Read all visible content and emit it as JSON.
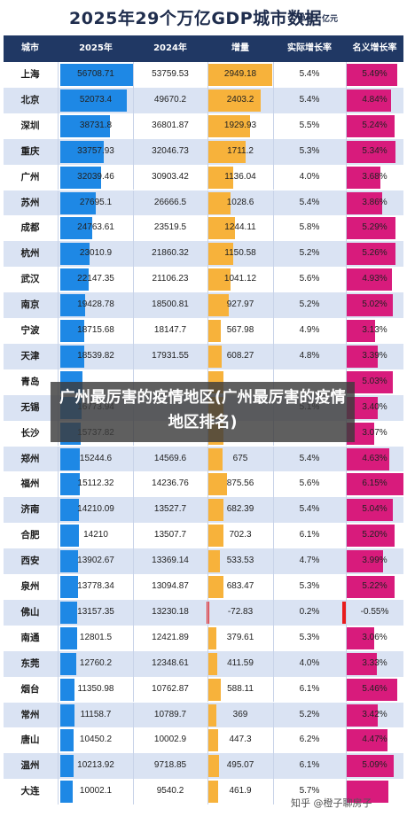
{
  "title": "2025年29个万亿GDP城市数据",
  "unit": "单位：亿元",
  "headers": [
    "城市",
    "2025年",
    "2024年",
    "增量",
    "实际增长率",
    "名义增长率"
  ],
  "chart_data": {
    "type": "table",
    "title": "2025年29个万亿GDP城市数据",
    "columns": [
      "城市",
      "2025年",
      "2024年",
      "增量",
      "实际增长率",
      "名义增长率"
    ],
    "rows": [
      {
        "city": "上海",
        "y2025": "56708.71",
        "y2024": "53759.53",
        "inc": "2949.18",
        "real": "5.4%",
        "nominal": "5.49%"
      },
      {
        "city": "北京",
        "y2025": "52073.4",
        "y2024": "49670.2",
        "inc": "2403.2",
        "real": "5.4%",
        "nominal": "4.84%"
      },
      {
        "city": "深圳",
        "y2025": "38731.8",
        "y2024": "36801.87",
        "inc": "1929.93",
        "real": "5.5%",
        "nominal": "5.24%"
      },
      {
        "city": "重庆",
        "y2025": "33757.93",
        "y2024": "32046.73",
        "inc": "1711.2",
        "real": "5.3%",
        "nominal": "5.34%"
      },
      {
        "city": "广州",
        "y2025": "32039.46",
        "y2024": "30903.42",
        "inc": "1136.04",
        "real": "4.0%",
        "nominal": "3.68%"
      },
      {
        "city": "苏州",
        "y2025": "27695.1",
        "y2024": "26666.5",
        "inc": "1028.6",
        "real": "5.4%",
        "nominal": "3.86%"
      },
      {
        "city": "成都",
        "y2025": "24763.61",
        "y2024": "23519.5",
        "inc": "1244.11",
        "real": "5.8%",
        "nominal": "5.29%"
      },
      {
        "city": "杭州",
        "y2025": "23010.9",
        "y2024": "21860.32",
        "inc": "1150.58",
        "real": "5.2%",
        "nominal": "5.26%"
      },
      {
        "city": "武汉",
        "y2025": "22147.35",
        "y2024": "21106.23",
        "inc": "1041.12",
        "real": "5.6%",
        "nominal": "4.93%"
      },
      {
        "city": "南京",
        "y2025": "19428.78",
        "y2024": "18500.81",
        "inc": "927.97",
        "real": "5.2%",
        "nominal": "5.02%"
      },
      {
        "city": "宁波",
        "y2025": "18715.68",
        "y2024": "18147.7",
        "inc": "567.98",
        "real": "4.9%",
        "nominal": "3.13%"
      },
      {
        "city": "天津",
        "y2025": "18539.82",
        "y2024": "17931.55",
        "inc": "608.27",
        "real": "4.8%",
        "nominal": "3.39%"
      },
      {
        "city": "青岛",
        "y2025": "",
        "y2024": "",
        "inc": "",
        "real": "",
        "nominal": "5.03%"
      },
      {
        "city": "无锡",
        "y2025": "16773.94",
        "y2024": "",
        "inc": "",
        "real": "5.1%",
        "nominal": "3.40%"
      },
      {
        "city": "长沙",
        "y2025": "15737.82",
        "y2024": "",
        "inc": "",
        "real": "",
        "nominal": "3.07%"
      },
      {
        "city": "郑州",
        "y2025": "15244.6",
        "y2024": "14569.6",
        "inc": "675",
        "real": "5.4%",
        "nominal": "4.63%"
      },
      {
        "city": "福州",
        "y2025": "15112.32",
        "y2024": "14236.76",
        "inc": "875.56",
        "real": "5.6%",
        "nominal": "6.15%"
      },
      {
        "city": "济南",
        "y2025": "14210.09",
        "y2024": "13527.7",
        "inc": "682.39",
        "real": "5.4%",
        "nominal": "5.04%"
      },
      {
        "city": "合肥",
        "y2025": "14210",
        "y2024": "13507.7",
        "inc": "702.3",
        "real": "6.1%",
        "nominal": "5.20%"
      },
      {
        "city": "西安",
        "y2025": "13902.67",
        "y2024": "13369.14",
        "inc": "533.53",
        "real": "4.7%",
        "nominal": "3.99%"
      },
      {
        "city": "泉州",
        "y2025": "13778.34",
        "y2024": "13094.87",
        "inc": "683.47",
        "real": "5.3%",
        "nominal": "5.22%"
      },
      {
        "city": "佛山",
        "y2025": "13157.35",
        "y2024": "13230.18",
        "inc": "-72.83",
        "real": "0.2%",
        "nominal": "-0.55%"
      },
      {
        "city": "南通",
        "y2025": "12801.5",
        "y2024": "12421.89",
        "inc": "379.61",
        "real": "5.3%",
        "nominal": "3.06%"
      },
      {
        "city": "东莞",
        "y2025": "12760.2",
        "y2024": "12348.61",
        "inc": "411.59",
        "real": "4.0%",
        "nominal": "3.33%"
      },
      {
        "city": "烟台",
        "y2025": "11350.98",
        "y2024": "10762.87",
        "inc": "588.11",
        "real": "6.1%",
        "nominal": "5.46%"
      },
      {
        "city": "常州",
        "y2025": "11158.7",
        "y2024": "10789.7",
        "inc": "369",
        "real": "5.2%",
        "nominal": "3.42%"
      },
      {
        "city": "唐山",
        "y2025": "10450.2",
        "y2024": "10002.9",
        "inc": "447.3",
        "real": "6.2%",
        "nominal": "4.47%"
      },
      {
        "city": "温州",
        "y2025": "10213.92",
        "y2024": "9718.85",
        "inc": "495.07",
        "real": "6.1%",
        "nominal": "5.09%"
      },
      {
        "city": "大连",
        "y2025": "10002.1",
        "y2024": "9540.2",
        "inc": "461.9",
        "real": "5.7%",
        "nominal": ""
      }
    ],
    "bar_values": {
      "y2025": [
        56708.71,
        52073.4,
        38731.8,
        33757.93,
        32039.46,
        27695.1,
        24763.61,
        23010.9,
        22147.35,
        19428.78,
        18715.68,
        18539.82,
        17200,
        16773.94,
        15737.82,
        15244.6,
        15112.32,
        14210.09,
        14210,
        13902.67,
        13778.34,
        13157.35,
        12801.5,
        12760.2,
        11350.98,
        11158.7,
        10450.2,
        10213.92,
        10002.1
      ],
      "inc": [
        2949.18,
        2403.2,
        1929.93,
        1711.2,
        1136.04,
        1028.6,
        1244.11,
        1150.58,
        1041.12,
        927.97,
        567.98,
        608.27,
        700,
        700,
        700,
        675,
        875.56,
        682.39,
        702.3,
        533.53,
        683.47,
        -72.83,
        379.61,
        411.59,
        588.11,
        369,
        447.3,
        495.07,
        461.9
      ],
      "nominal": [
        5.49,
        4.84,
        5.24,
        5.34,
        3.68,
        3.86,
        5.29,
        5.26,
        4.93,
        5.02,
        3.13,
        3.39,
        5.03,
        3.4,
        3.07,
        4.63,
        6.15,
        5.04,
        5.2,
        3.99,
        5.22,
        -0.55,
        3.06,
        3.33,
        5.46,
        3.42,
        4.47,
        5.09,
        4.5
      ]
    },
    "colors": {
      "header": "#203864",
      "blue_bar": "#1e88e5",
      "orange_bar": "#f7b23b",
      "negative_bar": "#e81c1c",
      "pink_bar": "#d81b7c",
      "row_alt": "#dae3f3"
    }
  },
  "watermark": "广州最厉害的疫情地区(广州最厉害的疫情地区排名)",
  "credit": "知乎 @橙子聊房子"
}
